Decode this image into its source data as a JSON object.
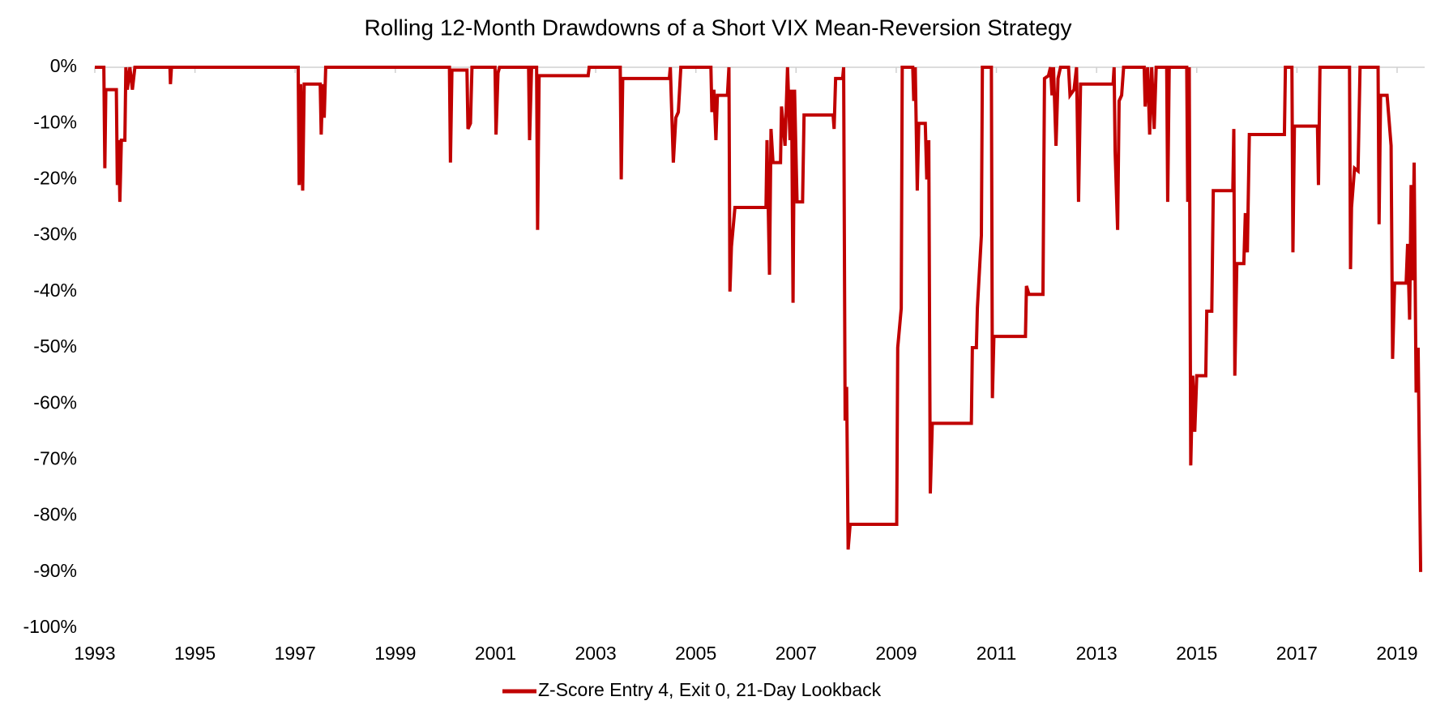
{
  "chart_data": {
    "type": "line",
    "title": "Rolling 12-Month Drawdowns of a Short VIX Mean-Reversion Strategy",
    "x": [
      1993.0,
      1993.18,
      1993.2,
      1993.22,
      1993.43,
      1993.45,
      1993.48,
      1993.5,
      1993.53,
      1993.6,
      1993.62,
      1993.65,
      1993.7,
      1993.75,
      1993.8,
      1994.5,
      1994.51,
      1994.53,
      1997.06,
      1997.08,
      1997.11,
      1997.15,
      1997.18,
      1997.5,
      1997.52,
      1997.55,
      1997.58,
      1997.61,
      2000.08,
      2000.1,
      2000.13,
      2000.43,
      2000.45,
      2000.5,
      2000.53,
      2000.99,
      2001.01,
      2001.05,
      2001.08,
      2001.66,
      2001.68,
      2001.72,
      2001.82,
      2001.84,
      2001.87,
      2002.85,
      2002.87,
      2003.49,
      2003.51,
      2003.54,
      2004.47,
      2004.49,
      2004.55,
      2004.6,
      2004.65,
      2004.7,
      2005.3,
      2005.32,
      2005.36,
      2005.4,
      2005.43,
      2005.63,
      2005.66,
      2005.68,
      2005.71,
      2005.78,
      2006.4,
      2006.42,
      2006.47,
      2006.5,
      2006.54,
      2006.69,
      2006.71,
      2006.78,
      2006.83,
      2006.88,
      2006.91,
      2006.94,
      2006.97,
      2007.02,
      2007.13,
      2007.16,
      2007.74,
      2007.76,
      2007.79,
      2007.93,
      2007.95,
      2007.98,
      2008.01,
      2008.04,
      2008.08,
      2009.01,
      2009.03,
      2009.1,
      2009.12,
      2009.33,
      2009.35,
      2009.38,
      2009.42,
      2009.45,
      2009.58,
      2009.61,
      2009.65,
      2009.68,
      2009.72,
      2010.5,
      2010.52,
      2010.6,
      2010.62,
      2010.7,
      2010.72,
      2010.9,
      2010.92,
      2010.95,
      2011.58,
      2011.6,
      2011.65,
      2011.93,
      2011.96,
      2012.04,
      2012.08,
      2012.11,
      2012.14,
      2012.19,
      2012.23,
      2012.28,
      2012.44,
      2012.47,
      2012.55,
      2012.6,
      2012.64,
      2012.68,
      2013.33,
      2013.35,
      2013.37,
      2013.42,
      2013.45,
      2013.5,
      2013.54,
      2013.95,
      2013.97,
      2014.02,
      2014.06,
      2014.1,
      2014.15,
      2014.19,
      2014.4,
      2014.42,
      2014.45,
      2014.8,
      2014.82,
      2014.85,
      2014.88,
      2014.92,
      2014.96,
      2015.0,
      2015.18,
      2015.2,
      2015.3,
      2015.33,
      2015.72,
      2015.74,
      2015.76,
      2015.8,
      2015.94,
      2015.97,
      2016.01,
      2016.05,
      2016.75,
      2016.77,
      2016.9,
      2016.92,
      2016.95,
      2017.41,
      2017.43,
      2017.46,
      2018.05,
      2018.07,
      2018.09,
      2018.15,
      2018.22,
      2018.26,
      2018.62,
      2018.64,
      2018.67,
      2018.8,
      2018.88,
      2018.91,
      2018.95,
      2019.18,
      2019.21,
      2019.25,
      2019.28,
      2019.31,
      2019.34,
      2019.38,
      2019.42,
      2019.47
    ],
    "series": [
      {
        "name": "Z-Score Entry 4, Exit 0, 21-Day Lookback",
        "color": "#c00000",
        "values": [
          0,
          0,
          -18,
          -4,
          -4,
          -21,
          -13,
          -24,
          -13,
          -13,
          0,
          -4,
          0,
          -4,
          0,
          0,
          -3,
          0,
          0,
          -21,
          -3,
          -22,
          -3,
          -3,
          -12,
          -3,
          -9,
          0,
          0,
          -17,
          -0.5,
          -0.5,
          -11,
          -10,
          0,
          0,
          -12,
          -1,
          0,
          0,
          -13,
          0,
          0,
          -29,
          -1.5,
          -1.5,
          0,
          0,
          -20,
          -2,
          -2,
          0,
          -17,
          -9,
          -8,
          0,
          0,
          -8,
          -4,
          -13,
          -5,
          -5,
          0,
          -40,
          -32,
          -25,
          -25,
          -13,
          -37,
          -11,
          -17,
          -17,
          -7,
          -14,
          0,
          -13,
          -4,
          -42,
          -4,
          -24,
          -24,
          -8.5,
          -8.5,
          -11,
          -2,
          -2,
          0,
          -63,
          -57,
          -86,
          -81.5,
          -81.5,
          -50,
          -43,
          0,
          0,
          -6,
          0,
          -22,
          -10,
          -10,
          -20,
          -13,
          -76,
          -63.5,
          -63.5,
          -50,
          -50,
          -43,
          -30,
          0,
          0,
          -59,
          -48,
          -48,
          -39,
          -40.5,
          -40.5,
          -2,
          -1.5,
          0,
          -5,
          0,
          -14,
          -2,
          0,
          0,
          -5,
          -4,
          0,
          -24,
          -3,
          -3,
          0,
          -15,
          -29,
          -6,
          -5,
          0,
          0,
          -7,
          0,
          -12,
          0,
          -11,
          0,
          0,
          -24,
          0,
          0,
          -24,
          0,
          -71,
          -55,
          -65,
          -55,
          -55,
          -43.5,
          -43.5,
          -22,
          -22,
          -11,
          -55,
          -35,
          -35,
          -26,
          -33,
          -12,
          -12,
          0,
          0,
          -33,
          -10.5,
          -10.5,
          -21,
          0,
          0,
          -36,
          -25,
          -18,
          -18.5,
          0,
          0,
          -28,
          -5,
          -5,
          -14,
          -52,
          -38.5,
          -38.5,
          -31.5,
          -45,
          -21,
          -38,
          -17,
          -58,
          -50,
          -90
        ]
      }
    ],
    "xlim": [
      1993,
      2019.55
    ],
    "xticks": [
      1993,
      1995,
      1997,
      1999,
      2001,
      2003,
      2005,
      2007,
      2009,
      2011,
      2013,
      2015,
      2017,
      2019
    ],
    "ylim": [
      -100,
      0
    ],
    "yticks": [
      {
        "value": 0,
        "label": "0%"
      },
      {
        "value": -10,
        "label": "-10%"
      },
      {
        "value": -20,
        "label": "-20%"
      },
      {
        "value": -30,
        "label": "-30%"
      },
      {
        "value": -40,
        "label": "-40%"
      },
      {
        "value": -50,
        "label": "-50%"
      },
      {
        "value": -60,
        "label": "-60%"
      },
      {
        "value": -70,
        "label": "-70%"
      },
      {
        "value": -80,
        "label": "-80%"
      },
      {
        "value": -90,
        "label": "-90%"
      },
      {
        "value": -100,
        "label": "-100%"
      }
    ],
    "legend": "bottom"
  }
}
